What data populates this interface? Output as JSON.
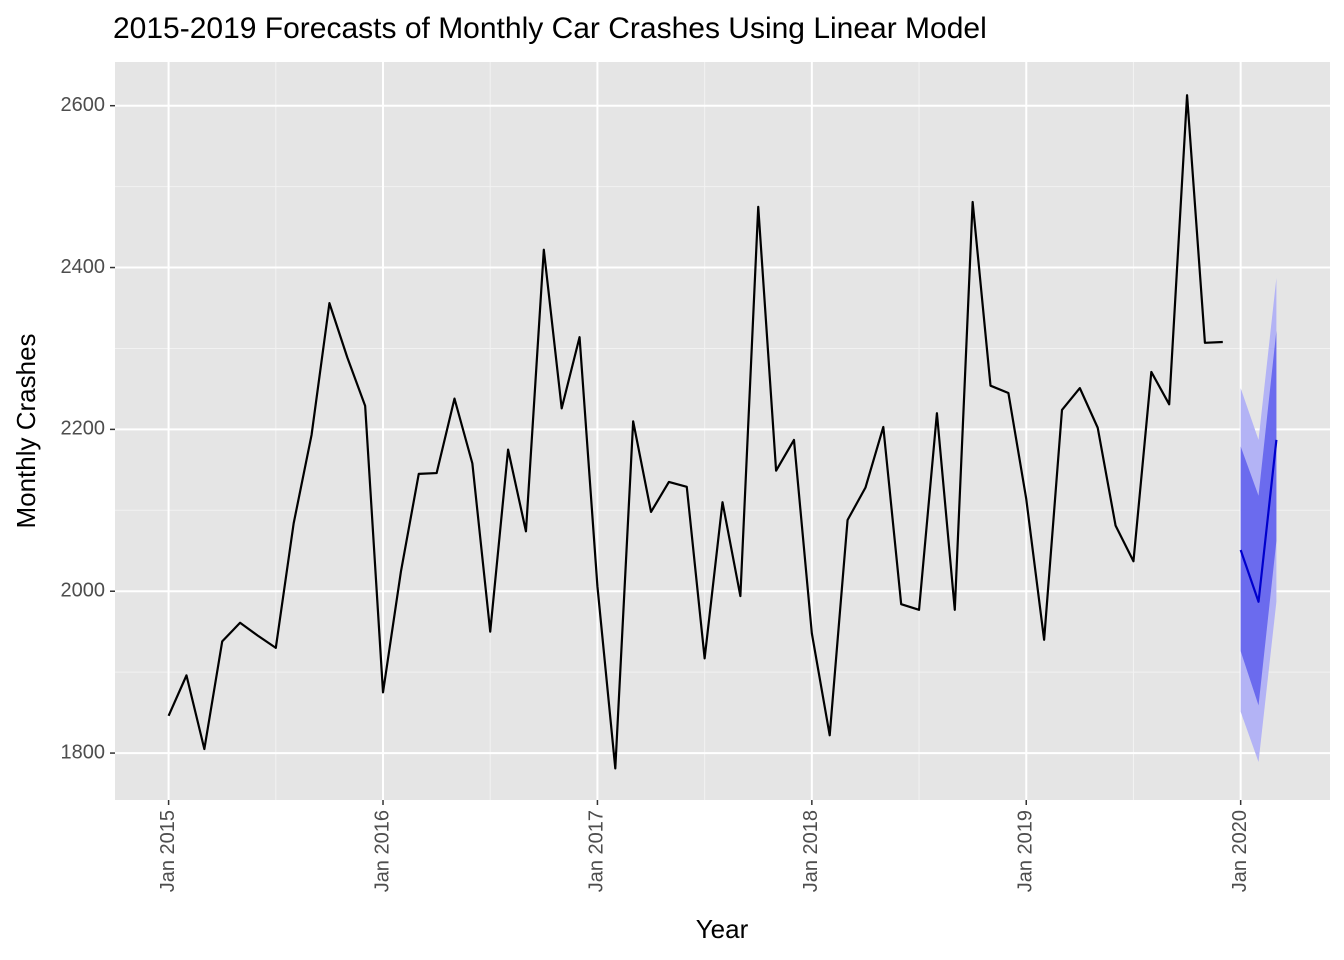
{
  "chart_data": {
    "type": "line",
    "title": "2015-2019 Forecasts of Monthly Car Crashes Using Linear Model",
    "x_label": "Year",
    "y_label": "Monthly Crashes",
    "grid": true,
    "xlim": [
      "2014-10",
      "2020-06"
    ],
    "xticks": [
      {
        "value": "2015-01",
        "label": "Jan 2015"
      },
      {
        "value": "2016-01",
        "label": "Jan 2016"
      },
      {
        "value": "2017-01",
        "label": "Jan 2017"
      },
      {
        "value": "2018-01",
        "label": "Jan 2018"
      },
      {
        "value": "2019-01",
        "label": "Jan 2019"
      },
      {
        "value": "2020-01",
        "label": "Jan 2020"
      }
    ],
    "ylim": [
      1742,
      2654
    ],
    "yticks": [
      1800,
      2000,
      2200,
      2400,
      2600
    ],
    "series": [
      {
        "color": "#000000",
        "x": [
          "2015-01",
          "2015-02",
          "2015-03",
          "2015-04",
          "2015-05",
          "2015-06",
          "2015-07",
          "2015-08",
          "2015-09",
          "2015-10",
          "2015-11",
          "2015-12",
          "2016-01",
          "2016-02",
          "2016-03",
          "2016-04",
          "2016-05",
          "2016-06",
          "2016-07",
          "2016-08",
          "2016-09",
          "2016-10",
          "2016-11",
          "2016-12",
          "2017-01",
          "2017-02",
          "2017-03",
          "2017-04",
          "2017-05",
          "2017-06",
          "2017-07",
          "2017-08",
          "2017-09",
          "2017-10",
          "2017-11",
          "2017-12",
          "2018-01",
          "2018-02",
          "2018-03",
          "2018-04",
          "2018-05",
          "2018-06",
          "2018-07",
          "2018-08",
          "2018-09",
          "2018-10",
          "2018-11",
          "2018-12",
          "2019-01",
          "2019-02",
          "2019-03",
          "2019-04",
          "2019-05",
          "2019-06",
          "2019-07",
          "2019-08",
          "2019-09",
          "2019-10",
          "2019-11",
          "2019-12"
        ],
        "values": [
          1846,
          1896,
          1805,
          1938,
          1961,
          1945,
          1930,
          2084,
          2193,
          2356,
          2289,
          2229,
          1875,
          2024,
          2145,
          2146,
          2238,
          2158,
          1950,
          2175,
          2074,
          2422,
          2226,
          2314,
          2006,
          1781,
          2210,
          2098,
          2135,
          2129,
          1917,
          2110,
          1994,
          2475,
          2149,
          2187,
          1948,
          1822,
          2088,
          2128,
          2203,
          1984,
          1977,
          2220,
          1977,
          2481,
          2254,
          2245,
          2114,
          1940,
          2224,
          2251,
          2202,
          2081,
          2037,
          2271,
          2231,
          2613,
          2307,
          2308
        ]
      },
      {
        "color": "#0000cd",
        "x": [
          "2020-01",
          "2020-02",
          "2020-03"
        ],
        "values": [
          2051,
          1987,
          2187
        ],
        "bands": [
          {
            "color": "#b3b3f5",
            "lower": [
              1851,
              1789,
              1987
            ],
            "upper": [
              2251,
              2187,
              2387
            ]
          },
          {
            "color": "#6b6bee",
            "lower": [
              1926,
              1859,
              2062
            ],
            "upper": [
              2179,
              2118,
              2322
            ]
          }
        ]
      }
    ]
  }
}
